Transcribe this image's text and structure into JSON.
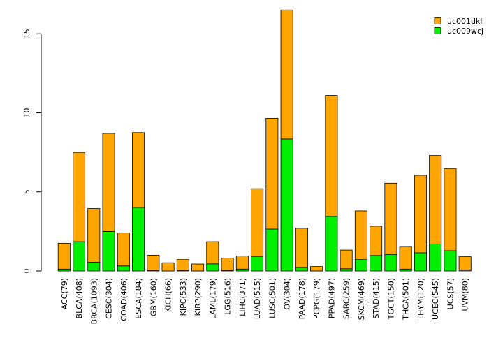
{
  "chart_data": {
    "type": "bar",
    "stacked": true,
    "categories": [
      "ACC(79)",
      "BLCA(408)",
      "BRCA(1093)",
      "CESC(304)",
      "COAD(406)",
      "ESCA(184)",
      "GBM(160)",
      "KICH(66)",
      "KIPC(533)",
      "KIRP(290)",
      "LAML(179)",
      "LGG(516)",
      "LIHC(371)",
      "LUAD(515)",
      "LUSC(501)",
      "OV(304)",
      "PAAD(178)",
      "PCPG(179)",
      "PPAD(497)",
      "SARC(259)",
      "SKCM(469)",
      "STAD(415)",
      "TGCT(150)",
      "THCA(501)",
      "THYM(120)",
      "UCEC(545)",
      "UCS(57)",
      "UVM(80)"
    ],
    "series": [
      {
        "name": "uc009wcj",
        "color": "#00ee00",
        "values": [
          0.12,
          1.85,
          0.55,
          2.5,
          0.32,
          4.02,
          0.04,
          0.0,
          0.04,
          0.0,
          0.45,
          0.04,
          0.12,
          0.92,
          2.65,
          8.35,
          0.22,
          0.0,
          3.45,
          0.14,
          0.72,
          0.98,
          1.05,
          0.12,
          1.15,
          1.7,
          1.28,
          0.06
        ]
      },
      {
        "name": "uc001dkl",
        "color": "#ffa500",
        "values": [
          1.63,
          5.65,
          3.4,
          6.2,
          2.08,
          4.73,
          0.96,
          0.52,
          0.68,
          0.44,
          1.4,
          0.78,
          0.83,
          4.28,
          7.0,
          8.15,
          2.48,
          0.28,
          7.65,
          1.18,
          3.08,
          1.85,
          4.5,
          1.43,
          4.9,
          5.6,
          5.2,
          0.84
        ]
      }
    ],
    "yticks": [
      0,
      5,
      10,
      15
    ],
    "ylim": [
      0,
      16.5
    ],
    "legend": "top-right",
    "grid": false
  }
}
